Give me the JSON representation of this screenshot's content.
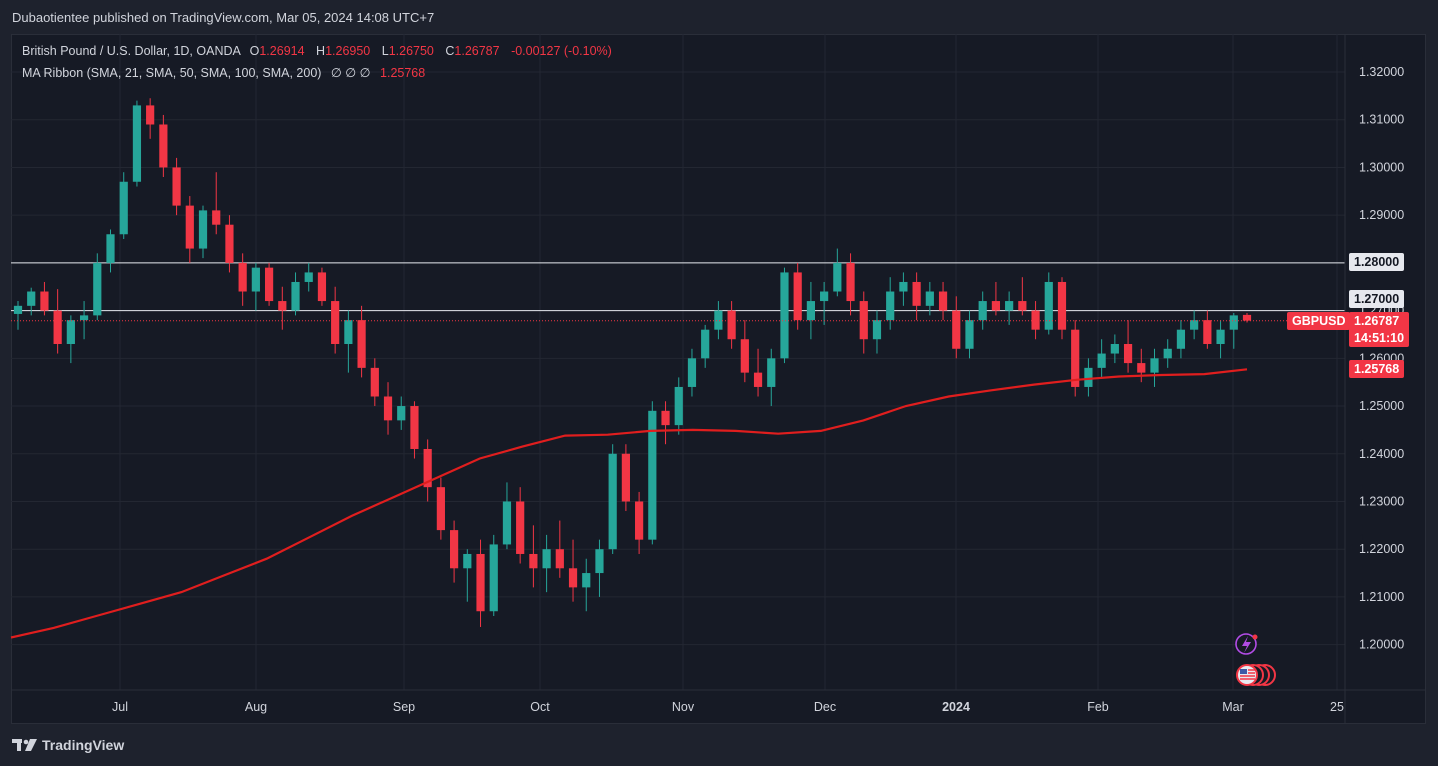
{
  "publisher": "Dubaotientee published on TradingView.com, Mar 05, 2024 14:08 UTC+7",
  "legend": {
    "title": "British Pound / U.S. Dollar, 1D, OANDA",
    "open_label": "O",
    "open": "1.26914",
    "high_label": "H",
    "high": "1.26950",
    "low_label": "L",
    "low": "1.26750",
    "close_label": "C",
    "close": "1.26787",
    "change": "-0.00127 (-0.10%)",
    "ma_title": "MA Ribbon (SMA, 21, SMA, 50, SMA, 100, SMA, 200)",
    "ma_values": "∅ ∅ ∅",
    "ma_value": "1.25768"
  },
  "axis": {
    "y_ticks": [
      "1.32000",
      "1.31000",
      "1.30000",
      "1.29000",
      "1.28000",
      "1.27000",
      "1.26000",
      "1.25000",
      "1.24000",
      "1.23000",
      "1.22000",
      "1.21000",
      "1.20000"
    ],
    "x_ticks": [
      "Jul",
      "Aug",
      "Sep",
      "Oct",
      "Nov",
      "Dec",
      "2024",
      "Feb",
      "Mar",
      "25"
    ]
  },
  "price_labels": {
    "symbol": "GBPUSD",
    "last_price": "1.26787",
    "countdown": "14:51:10",
    "ma_price": "1.25768",
    "level_1": "1.28000",
    "level_2": "1.27000"
  },
  "footer": {
    "logo_text": "TradingView"
  },
  "icons": {
    "lightning": "lightning-icon",
    "flags": "us-flag-icon"
  },
  "colors": {
    "up": "#26a69a",
    "down": "#f23645",
    "ma": "#e01e1e",
    "background": "#161a25",
    "grid": "#232732"
  },
  "chart_data": {
    "type": "candlestick",
    "title": "British Pound / U.S. Dollar, 1D, OANDA",
    "ylim": [
      1.194,
      1.3255
    ],
    "y_ticks": [
      1.32,
      1.31,
      1.3,
      1.29,
      1.28,
      1.27,
      1.26,
      1.25,
      1.24,
      1.23,
      1.22,
      1.21,
      1.2
    ],
    "horizontal_lines": [
      1.28,
      1.27
    ],
    "last_price": 1.26787,
    "ma200_last": 1.25768,
    "x_ticks": [
      "Jul",
      "Aug",
      "Sep",
      "Oct",
      "Nov",
      "Dec",
      "2024",
      "Feb",
      "Mar",
      "25"
    ],
    "ma200_series": [
      1.2015,
      1.2035,
      1.206,
      1.2085,
      1.211,
      1.2145,
      1.218,
      1.2225,
      1.227,
      1.231,
      1.235,
      1.239,
      1.2415,
      1.2438,
      1.244,
      1.2448,
      1.245,
      1.2448,
      1.2442,
      1.2448,
      1.247,
      1.25,
      1.252,
      1.2533,
      1.2545,
      1.2555,
      1.2562,
      1.2565,
      1.2567,
      1.2577
    ],
    "candles_ohlc": [
      [
        1.2693,
        1.272,
        1.266,
        1.271
      ],
      [
        1.271,
        1.2748,
        1.269,
        1.274
      ],
      [
        1.274,
        1.276,
        1.269,
        1.27
      ],
      [
        1.27,
        1.2745,
        1.261,
        1.263
      ],
      [
        1.263,
        1.269,
        1.259,
        1.268
      ],
      [
        1.268,
        1.272,
        1.264,
        1.269
      ],
      [
        1.269,
        1.282,
        1.268,
        1.28
      ],
      [
        1.28,
        1.287,
        1.278,
        1.286
      ],
      [
        1.286,
        1.299,
        1.285,
        1.297
      ],
      [
        1.297,
        1.314,
        1.296,
        1.313
      ],
      [
        1.313,
        1.3145,
        1.306,
        1.309
      ],
      [
        1.309,
        1.311,
        1.298,
        1.3
      ],
      [
        1.3,
        1.302,
        1.29,
        1.292
      ],
      [
        1.292,
        1.294,
        1.28,
        1.283
      ],
      [
        1.283,
        1.292,
        1.281,
        1.291
      ],
      [
        1.291,
        1.299,
        1.286,
        1.288
      ],
      [
        1.288,
        1.29,
        1.278,
        1.28
      ],
      [
        1.28,
        1.282,
        1.271,
        1.274
      ],
      [
        1.274,
        1.28,
        1.27,
        1.279
      ],
      [
        1.279,
        1.28,
        1.271,
        1.272
      ],
      [
        1.272,
        1.275,
        1.266,
        1.27
      ],
      [
        1.27,
        1.278,
        1.269,
        1.276
      ],
      [
        1.276,
        1.28,
        1.274,
        1.278
      ],
      [
        1.278,
        1.279,
        1.271,
        1.272
      ],
      [
        1.272,
        1.275,
        1.261,
        1.263
      ],
      [
        1.263,
        1.27,
        1.257,
        1.268
      ],
      [
        1.268,
        1.271,
        1.256,
        1.258
      ],
      [
        1.258,
        1.26,
        1.25,
        1.252
      ],
      [
        1.252,
        1.255,
        1.244,
        1.247
      ],
      [
        1.247,
        1.252,
        1.245,
        1.25
      ],
      [
        1.25,
        1.251,
        1.239,
        1.241
      ],
      [
        1.241,
        1.243,
        1.23,
        1.233
      ],
      [
        1.233,
        1.235,
        1.222,
        1.224
      ],
      [
        1.224,
        1.226,
        1.213,
        1.216
      ],
      [
        1.216,
        1.22,
        1.209,
        1.219
      ],
      [
        1.219,
        1.222,
        1.2037,
        1.207
      ],
      [
        1.207,
        1.223,
        1.206,
        1.221
      ],
      [
        1.221,
        1.234,
        1.22,
        1.23
      ],
      [
        1.23,
        1.233,
        1.217,
        1.219
      ],
      [
        1.219,
        1.225,
        1.212,
        1.216
      ],
      [
        1.216,
        1.223,
        1.211,
        1.22
      ],
      [
        1.22,
        1.226,
        1.214,
        1.216
      ],
      [
        1.216,
        1.222,
        1.209,
        1.212
      ],
      [
        1.212,
        1.218,
        1.207,
        1.215
      ],
      [
        1.215,
        1.222,
        1.21,
        1.22
      ],
      [
        1.22,
        1.242,
        1.219,
        1.24
      ],
      [
        1.24,
        1.242,
        1.228,
        1.23
      ],
      [
        1.23,
        1.232,
        1.219,
        1.222
      ],
      [
        1.222,
        1.251,
        1.221,
        1.249
      ],
      [
        1.249,
        1.251,
        1.242,
        1.246
      ],
      [
        1.246,
        1.256,
        1.244,
        1.254
      ],
      [
        1.254,
        1.262,
        1.252,
        1.26
      ],
      [
        1.26,
        1.267,
        1.258,
        1.266
      ],
      [
        1.266,
        1.272,
        1.264,
        1.27
      ],
      [
        1.27,
        1.272,
        1.262,
        1.264
      ],
      [
        1.264,
        1.268,
        1.255,
        1.257
      ],
      [
        1.257,
        1.262,
        1.252,
        1.254
      ],
      [
        1.254,
        1.262,
        1.25,
        1.26
      ],
      [
        1.26,
        1.279,
        1.259,
        1.278
      ],
      [
        1.278,
        1.28,
        1.266,
        1.268
      ],
      [
        1.268,
        1.276,
        1.264,
        1.272
      ],
      [
        1.272,
        1.276,
        1.267,
        1.274
      ],
      [
        1.274,
        1.283,
        1.273,
        1.28
      ],
      [
        1.28,
        1.282,
        1.269,
        1.272
      ],
      [
        1.272,
        1.274,
        1.261,
        1.264
      ],
      [
        1.264,
        1.27,
        1.261,
        1.268
      ],
      [
        1.268,
        1.277,
        1.266,
        1.274
      ],
      [
        1.274,
        1.278,
        1.271,
        1.276
      ],
      [
        1.276,
        1.278,
        1.268,
        1.271
      ],
      [
        1.271,
        1.276,
        1.269,
        1.274
      ],
      [
        1.274,
        1.276,
        1.268,
        1.27
      ],
      [
        1.27,
        1.273,
        1.26,
        1.262
      ],
      [
        1.262,
        1.27,
        1.26,
        1.268
      ],
      [
        1.268,
        1.274,
        1.266,
        1.272
      ],
      [
        1.272,
        1.276,
        1.269,
        1.27
      ],
      [
        1.27,
        1.274,
        1.267,
        1.272
      ],
      [
        1.272,
        1.277,
        1.269,
        1.27
      ],
      [
        1.27,
        1.272,
        1.264,
        1.266
      ],
      [
        1.266,
        1.278,
        1.265,
        1.276
      ],
      [
        1.276,
        1.277,
        1.264,
        1.266
      ],
      [
        1.266,
        1.268,
        1.252,
        1.254
      ],
      [
        1.254,
        1.26,
        1.252,
        1.258
      ],
      [
        1.258,
        1.264,
        1.256,
        1.261
      ],
      [
        1.261,
        1.265,
        1.259,
        1.263
      ],
      [
        1.263,
        1.268,
        1.257,
        1.259
      ],
      [
        1.259,
        1.262,
        1.255,
        1.257
      ],
      [
        1.257,
        1.262,
        1.254,
        1.26
      ],
      [
        1.26,
        1.264,
        1.258,
        1.262
      ],
      [
        1.262,
        1.268,
        1.26,
        1.266
      ],
      [
        1.266,
        1.27,
        1.264,
        1.268
      ],
      [
        1.268,
        1.27,
        1.262,
        1.263
      ],
      [
        1.263,
        1.268,
        1.26,
        1.266
      ],
      [
        1.266,
        1.2695,
        1.262,
        1.269
      ],
      [
        1.2691,
        1.2695,
        1.2675,
        1.2679
      ]
    ]
  }
}
